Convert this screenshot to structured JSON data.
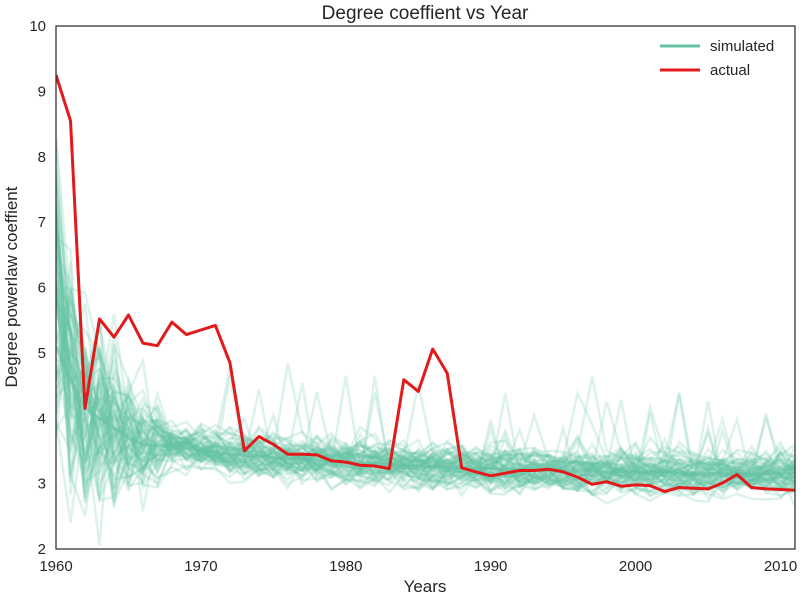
{
  "chart_data": {
    "type": "line",
    "title": "Degree coeffient vs Year",
    "xlabel": "Years",
    "ylabel": "Degree powerlaw coeffient",
    "xlim": [
      1960,
      2011
    ],
    "ylim": [
      2,
      10
    ],
    "x_ticks": [
      1960,
      1970,
      1980,
      1990,
      2000,
      2010
    ],
    "y_ticks": [
      2,
      3,
      4,
      5,
      6,
      7,
      8,
      9,
      10
    ],
    "grid": false,
    "legend": {
      "position": "top-right",
      "entries": [
        "simulated",
        "actual"
      ]
    },
    "colors": {
      "simulated": "#66c2a5",
      "actual": "#e31a1c"
    },
    "series": [
      {
        "name": "simulated",
        "description_of_values": "mean trend of many translucent simulated runs",
        "x": [
          1960,
          1961,
          1962,
          1963,
          1964,
          1965,
          1966,
          1968,
          1970,
          1972,
          1975,
          1980,
          1985,
          1990,
          1995,
          2000,
          2005,
          2011
        ],
        "values": [
          5.1,
          4.6,
          4.15,
          4.0,
          3.85,
          3.7,
          3.6,
          3.57,
          3.52,
          3.45,
          3.4,
          3.33,
          3.27,
          3.23,
          3.2,
          3.18,
          3.16,
          3.15
        ]
      },
      {
        "name": "actual",
        "x": [
          1960,
          1961,
          1962,
          1963,
          1964,
          1965,
          1966,
          1967,
          1968,
          1969,
          1970,
          1971,
          1972,
          1973,
          1974,
          1975,
          1976,
          1977,
          1978,
          1979,
          1980,
          1981,
          1982,
          1983,
          1984,
          1985,
          1986,
          1987,
          1988,
          1989,
          1990,
          1991,
          1992,
          1993,
          1994,
          1995,
          1996,
          1997,
          1998,
          1999,
          2000,
          2001,
          2002,
          2003,
          2004,
          2005,
          2006,
          2007,
          2008,
          2009,
          2010,
          2011
        ],
        "values": [
          9.25,
          8.55,
          4.15,
          5.52,
          5.24,
          5.58,
          5.15,
          5.11,
          5.47,
          5.28,
          5.35,
          5.42,
          4.85,
          3.5,
          3.72,
          3.6,
          3.45,
          3.45,
          3.44,
          3.35,
          3.33,
          3.28,
          3.27,
          3.23,
          4.59,
          4.41,
          5.06,
          4.69,
          3.24,
          3.18,
          3.12,
          3.16,
          3.2,
          3.2,
          3.22,
          3.18,
          3.1,
          2.99,
          3.03,
          2.96,
          2.98,
          2.97,
          2.88,
          2.94,
          2.93,
          2.92,
          3.01,
          3.14,
          2.94,
          2.92,
          2.91,
          2.9
        ]
      }
    ]
  }
}
